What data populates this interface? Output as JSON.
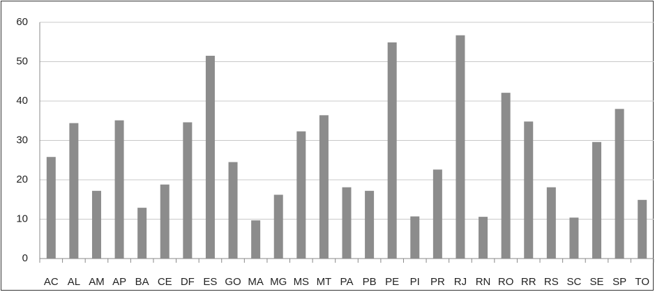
{
  "chart_data": {
    "type": "bar",
    "categories": [
      "AC",
      "AL",
      "AM",
      "AP",
      "BA",
      "CE",
      "DF",
      "ES",
      "GO",
      "MA",
      "MG",
      "MS",
      "MT",
      "PA",
      "PB",
      "PE",
      "PI",
      "PR",
      "RJ",
      "RN",
      "RO",
      "RR",
      "RS",
      "SC",
      "SE",
      "SP",
      "TO"
    ],
    "values": [
      25.8,
      34.4,
      17.2,
      35.1,
      12.9,
      18.8,
      34.6,
      51.5,
      24.5,
      9.7,
      16.2,
      32.3,
      36.4,
      18.1,
      17.2,
      54.9,
      10.7,
      22.6,
      56.7,
      10.6,
      42.1,
      34.8,
      18.1,
      10.4,
      29.6,
      38.0,
      14.9
    ],
    "color": "#8c8c8c",
    "ylim": [
      0,
      60
    ],
    "yticks": [
      0,
      10,
      20,
      30,
      40,
      50,
      60
    ],
    "grid": true
  }
}
